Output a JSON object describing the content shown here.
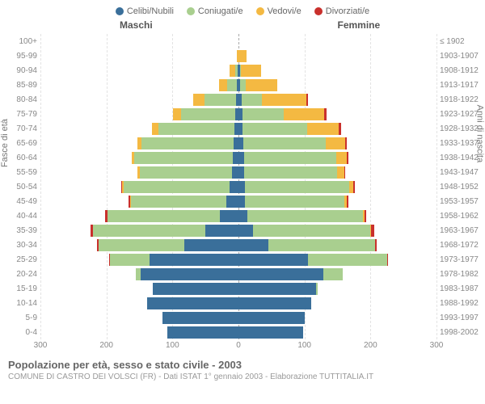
{
  "legend": [
    {
      "label": "Celibi/Nubili",
      "color": "#3a6f9a"
    },
    {
      "label": "Coniugati/e",
      "color": "#a9cf8f"
    },
    {
      "label": "Vedovi/e",
      "color": "#f4b942"
    },
    {
      "label": "Divorziati/e",
      "color": "#c9302c"
    }
  ],
  "headers": {
    "male": "Maschi",
    "female": "Femmine"
  },
  "ylabels": {
    "left": "Fasce di età",
    "right": "Anni di nascita"
  },
  "xaxis": {
    "max": 300,
    "ticks": [
      300,
      200,
      100,
      0,
      100,
      200,
      300
    ]
  },
  "title": "Popolazione per età, sesso e stato civile - 2003",
  "subtitle": "COMUNE DI CASTRO DEI VOLSCI (FR) - Dati ISTAT 1° gennaio 2003 - Elaborazione TUTTITALIA.IT",
  "colors": {
    "single": "#3a6f9a",
    "married": "#a9cf8f",
    "widowed": "#f4b942",
    "divorced": "#c9302c"
  },
  "rows": [
    {
      "age": "100+",
      "birth": "≤ 1902",
      "m": {
        "s": 0,
        "c": 0,
        "v": 0,
        "d": 0
      },
      "f": {
        "s": 0,
        "c": 0,
        "v": 0,
        "d": 0
      }
    },
    {
      "age": "95-99",
      "birth": "1903-1907",
      "m": {
        "s": 0,
        "c": 0,
        "v": 2,
        "d": 0
      },
      "f": {
        "s": 0,
        "c": 0,
        "v": 12,
        "d": 0
      }
    },
    {
      "age": "90-94",
      "birth": "1908-1912",
      "m": {
        "s": 1,
        "c": 4,
        "v": 8,
        "d": 0
      },
      "f": {
        "s": 2,
        "c": 2,
        "v": 30,
        "d": 0
      }
    },
    {
      "age": "85-89",
      "birth": "1913-1917",
      "m": {
        "s": 2,
        "c": 15,
        "v": 12,
        "d": 0
      },
      "f": {
        "s": 3,
        "c": 8,
        "v": 48,
        "d": 0
      }
    },
    {
      "age": "80-84",
      "birth": "1918-1922",
      "m": {
        "s": 4,
        "c": 48,
        "v": 16,
        "d": 0
      },
      "f": {
        "s": 5,
        "c": 30,
        "v": 68,
        "d": 2
      }
    },
    {
      "age": "75-79",
      "birth": "1923-1927",
      "m": {
        "s": 5,
        "c": 82,
        "v": 12,
        "d": 0
      },
      "f": {
        "s": 6,
        "c": 62,
        "v": 62,
        "d": 3
      }
    },
    {
      "age": "70-74",
      "birth": "1928-1932",
      "m": {
        "s": 6,
        "c": 115,
        "v": 10,
        "d": 0
      },
      "f": {
        "s": 6,
        "c": 98,
        "v": 48,
        "d": 3
      }
    },
    {
      "age": "65-69",
      "birth": "1933-1937",
      "m": {
        "s": 7,
        "c": 140,
        "v": 6,
        "d": 0
      },
      "f": {
        "s": 7,
        "c": 125,
        "v": 30,
        "d": 2
      }
    },
    {
      "age": "60-64",
      "birth": "1938-1942",
      "m": {
        "s": 8,
        "c": 150,
        "v": 4,
        "d": 0
      },
      "f": {
        "s": 8,
        "c": 140,
        "v": 16,
        "d": 2
      }
    },
    {
      "age": "55-59",
      "birth": "1943-1947",
      "m": {
        "s": 10,
        "c": 140,
        "v": 3,
        "d": 0
      },
      "f": {
        "s": 8,
        "c": 142,
        "v": 10,
        "d": 2
      }
    },
    {
      "age": "50-54",
      "birth": "1948-1952",
      "m": {
        "s": 14,
        "c": 160,
        "v": 2,
        "d": 2
      },
      "f": {
        "s": 10,
        "c": 158,
        "v": 6,
        "d": 2
      }
    },
    {
      "age": "45-49",
      "birth": "1953-1957",
      "m": {
        "s": 18,
        "c": 145,
        "v": 1,
        "d": 2
      },
      "f": {
        "s": 10,
        "c": 150,
        "v": 4,
        "d": 3
      }
    },
    {
      "age": "40-44",
      "birth": "1958-1962",
      "m": {
        "s": 28,
        "c": 170,
        "v": 1,
        "d": 3
      },
      "f": {
        "s": 14,
        "c": 175,
        "v": 2,
        "d": 3
      }
    },
    {
      "age": "35-39",
      "birth": "1963-1967",
      "m": {
        "s": 50,
        "c": 170,
        "v": 0,
        "d": 4
      },
      "f": {
        "s": 22,
        "c": 178,
        "v": 1,
        "d": 5
      }
    },
    {
      "age": "30-34",
      "birth": "1968-1972",
      "m": {
        "s": 82,
        "c": 130,
        "v": 0,
        "d": 2
      },
      "f": {
        "s": 45,
        "c": 162,
        "v": 0,
        "d": 3
      }
    },
    {
      "age": "25-29",
      "birth": "1973-1977",
      "m": {
        "s": 135,
        "c": 60,
        "v": 0,
        "d": 1
      },
      "f": {
        "s": 105,
        "c": 120,
        "v": 0,
        "d": 2
      }
    },
    {
      "age": "20-24",
      "birth": "1978-1982",
      "m": {
        "s": 148,
        "c": 8,
        "v": 0,
        "d": 0
      },
      "f": {
        "s": 128,
        "c": 30,
        "v": 0,
        "d": 0
      }
    },
    {
      "age": "15-19",
      "birth": "1983-1987",
      "m": {
        "s": 130,
        "c": 0,
        "v": 0,
        "d": 0
      },
      "f": {
        "s": 118,
        "c": 2,
        "v": 0,
        "d": 0
      }
    },
    {
      "age": "10-14",
      "birth": "1988-1992",
      "m": {
        "s": 138,
        "c": 0,
        "v": 0,
        "d": 0
      },
      "f": {
        "s": 110,
        "c": 0,
        "v": 0,
        "d": 0
      }
    },
    {
      "age": "5-9",
      "birth": "1993-1997",
      "m": {
        "s": 115,
        "c": 0,
        "v": 0,
        "d": 0
      },
      "f": {
        "s": 100,
        "c": 0,
        "v": 0,
        "d": 0
      }
    },
    {
      "age": "0-4",
      "birth": "1998-2002",
      "m": {
        "s": 108,
        "c": 0,
        "v": 0,
        "d": 0
      },
      "f": {
        "s": 98,
        "c": 0,
        "v": 0,
        "d": 0
      }
    }
  ]
}
